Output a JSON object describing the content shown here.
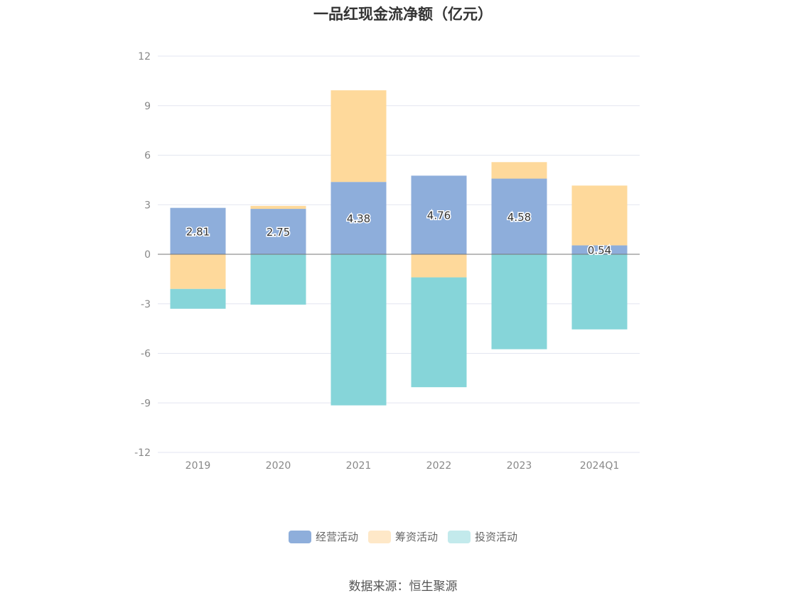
{
  "chart_data": {
    "type": "bar",
    "stacked": true,
    "title": "一品红现金流净额（亿元）",
    "categories": [
      "2019",
      "2020",
      "2021",
      "2022",
      "2023",
      "2024Q1"
    ],
    "series": [
      {
        "name": "经营活动",
        "color": "#8eaedb",
        "values": [
          2.81,
          2.75,
          4.38,
          4.76,
          4.58,
          0.54
        ],
        "show_labels": true
      },
      {
        "name": "筹资活动",
        "color": "#fed99b",
        "values": [
          -2.1,
          0.18,
          5.55,
          -1.4,
          1.0,
          3.62
        ],
        "show_labels": false
      },
      {
        "name": "投资活动",
        "color": "#86d5d9",
        "values": [
          -1.2,
          -3.05,
          -9.15,
          -6.65,
          -5.75,
          -4.55
        ],
        "show_labels": false
      }
    ],
    "ylim": [
      -12,
      12
    ],
    "yticks": [
      12,
      9,
      6,
      3,
      0,
      -3,
      -6,
      -9,
      -12
    ],
    "grid": true,
    "legend_position": "bottom"
  },
  "legend_colors": [
    "#8eaedb",
    "#fee8c8",
    "#c3eaec"
  ],
  "source": "数据来源：恒生聚源"
}
